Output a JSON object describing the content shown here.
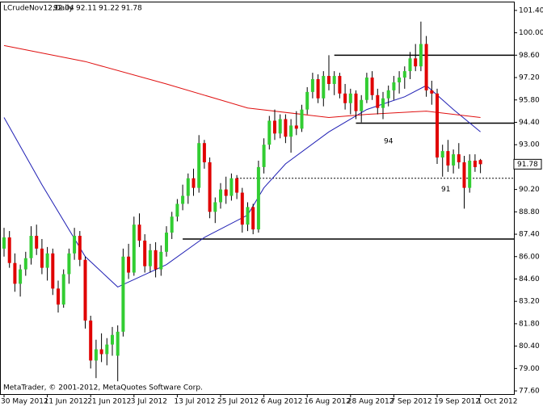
{
  "chart_data": {
    "type": "candlestick",
    "title": "LCrudeNov12,Daily",
    "footer": "MetaTrader, © 2001-2012, MetaQuotes Software Corp.",
    "categories": [
      "30 May 2012",
      null,
      null,
      null,
      null,
      null,
      null,
      null,
      "11 Jun 2012",
      null,
      null,
      null,
      null,
      null,
      null,
      null,
      "21 Jun 2012",
      null,
      null,
      null,
      null,
      null,
      null,
      null,
      "3 Jul 2012",
      null,
      null,
      null,
      null,
      null,
      null,
      null,
      "13 Jul 2012",
      null,
      null,
      null,
      null,
      null,
      null,
      null,
      "25 Jul 2012",
      null,
      null,
      null,
      null,
      null,
      null,
      null,
      "6 Aug 2012",
      null,
      null,
      null,
      null,
      null,
      null,
      null,
      "16 Aug 2012",
      null,
      null,
      null,
      null,
      null,
      null,
      null,
      "28 Aug 2012",
      null,
      null,
      null,
      null,
      null,
      null,
      null,
      "7 Sep 2012",
      null,
      null,
      null,
      null,
      null,
      null,
      null,
      "19 Sep 2012",
      null,
      null,
      null,
      null,
      null,
      null,
      null,
      "1 Oct 2012"
    ],
    "open": [
      86.5,
      87.2,
      85.6,
      84.3,
      85.2,
      85.9,
      87.3,
      86.5,
      85.3,
      86.2,
      84.0,
      83.0,
      84.9,
      86.2,
      87.3,
      85.8,
      82.0,
      79.5,
      80.2,
      79.9,
      80.5,
      79.8,
      81.3,
      86.0,
      85.0,
      88.0,
      87.0,
      85.4,
      86.4,
      85.2,
      86.3,
      87.5,
      88.5,
      89.3,
      89.8,
      90.9,
      90.3,
      93.1,
      91.9,
      88.8,
      89.4,
      90.2,
      89.8,
      90.9,
      90.0,
      88.0,
      89.1,
      87.7,
      91.6,
      93.0,
      94.5,
      93.7,
      94.6,
      93.5,
      94.2,
      94.0,
      95.2,
      96.3,
      97.1,
      95.9,
      97.3,
      96.8,
      97.3,
      96.2,
      95.6,
      96.2,
      95.1,
      95.8,
      97.2,
      96.1,
      95.3,
      95.9,
      96.4,
      96.9,
      97.2,
      97.6,
      98.4,
      97.9,
      99.3,
      96.4,
      96.2,
      92.2,
      92.6,
      91.7,
      92.4,
      91.9,
      90.3,
      92.0,
      92.04
    ],
    "high": [
      87.8,
      87.6,
      86.2,
      85.5,
      86.3,
      87.9,
      88.0,
      87.1,
      86.6,
      86.5,
      84.5,
      85.2,
      86.5,
      87.8,
      87.6,
      86.0,
      82.3,
      80.8,
      81.2,
      80.9,
      81.6,
      81.7,
      86.5,
      86.8,
      88.5,
      88.7,
      87.4,
      86.8,
      86.9,
      86.7,
      87.9,
      88.8,
      89.6,
      90.5,
      91.2,
      91.5,
      93.6,
      93.3,
      92.2,
      89.7,
      90.6,
      91.0,
      91.2,
      91.1,
      90.3,
      89.4,
      89.3,
      92.0,
      93.4,
      94.8,
      95.2,
      94.9,
      94.9,
      94.6,
      95.1,
      95.5,
      96.6,
      97.5,
      97.4,
      97.6,
      98.6,
      97.6,
      97.5,
      96.8,
      96.5,
      96.4,
      96.1,
      97.5,
      97.6,
      96.5,
      96.3,
      96.7,
      97.3,
      97.6,
      97.9,
      98.8,
      99.3,
      100.7,
      99.8,
      97.0,
      96.5,
      93.0,
      93.3,
      92.7,
      93.1,
      92.3,
      92.4,
      92.4,
      92.11
    ],
    "low": [
      86.0,
      85.3,
      83.8,
      83.5,
      84.8,
      85.5,
      86.1,
      84.9,
      84.5,
      83.6,
      82.5,
      82.8,
      84.3,
      85.8,
      85.4,
      81.5,
      79.0,
      78.4,
      79.4,
      79.2,
      79.8,
      78.2,
      81.0,
      84.6,
      84.8,
      86.6,
      85.0,
      85.0,
      84.7,
      84.8,
      86.0,
      87.1,
      88.2,
      88.9,
      89.3,
      89.8,
      90.0,
      91.5,
      88.4,
      88.1,
      89.0,
      89.3,
      89.5,
      89.6,
      87.5,
      87.6,
      87.4,
      87.5,
      91.2,
      92.7,
      93.3,
      93.4,
      93.1,
      92.5,
      93.6,
      93.8,
      94.9,
      95.9,
      95.6,
      95.4,
      96.4,
      96.1,
      95.9,
      95.2,
      94.9,
      94.6,
      94.4,
      95.6,
      95.8,
      94.9,
      94.6,
      95.4,
      95.8,
      96.2,
      96.5,
      97.1,
      97.6,
      97.6,
      96.0,
      95.5,
      91.8,
      91.0,
      91.3,
      91.2,
      91.5,
      89.0,
      90.0,
      91.3,
      91.22
    ],
    "close": [
      87.2,
      85.6,
      84.3,
      85.2,
      85.9,
      87.3,
      86.5,
      85.3,
      86.2,
      84.0,
      83.0,
      84.9,
      86.2,
      87.3,
      85.8,
      82.0,
      79.5,
      80.2,
      79.9,
      80.5,
      81.1,
      81.3,
      86.0,
      85.0,
      88.0,
      87.0,
      85.4,
      86.4,
      85.2,
      86.3,
      87.5,
      88.5,
      89.3,
      89.8,
      90.9,
      90.3,
      93.1,
      91.9,
      88.8,
      89.4,
      90.2,
      89.8,
      90.9,
      90.0,
      88.0,
      89.1,
      87.7,
      91.6,
      93.0,
      94.5,
      93.7,
      94.6,
      93.5,
      94.2,
      94.0,
      95.2,
      96.3,
      97.1,
      95.9,
      97.3,
      96.8,
      97.3,
      96.2,
      95.6,
      96.2,
      95.1,
      95.8,
      97.2,
      96.1,
      95.3,
      95.9,
      96.4,
      96.9,
      97.2,
      97.6,
      98.4,
      97.9,
      99.3,
      96.4,
      96.2,
      92.2,
      92.6,
      91.7,
      92.4,
      91.9,
      90.3,
      92.0,
      91.6,
      91.78
    ],
    "up_color": "#32cd32",
    "down_color": "#e00000",
    "wick_color": "#000000",
    "moving_averages": [
      {
        "color": "#1f1fb4",
        "x": [
          0,
          7,
          15,
          21,
          30,
          37,
          45,
          48,
          52,
          60,
          67,
          74,
          78,
          83,
          88
        ],
        "values": [
          94.7,
          90.5,
          86.0,
          84.1,
          85.5,
          87.2,
          88.6,
          90.3,
          91.8,
          93.8,
          95.2,
          96.0,
          96.7,
          95.2,
          93.8
        ]
      },
      {
        "color": "#e01010",
        "x": [
          0,
          15,
          30,
          45,
          60,
          67,
          78,
          88
        ],
        "values": [
          99.2,
          98.2,
          96.8,
          95.3,
          94.7,
          94.9,
          95.1,
          94.7
        ]
      }
    ],
    "levels": [
      98.6,
      94.35,
      87.1
    ],
    "dotted_level": 90.9,
    "annotations": [
      "94",
      "91"
    ],
    "ylim": [
      77.4,
      101.9
    ],
    "yticks": [
      {
        "value": 101.4,
        "label": "101.40"
      },
      {
        "value": 100.0,
        "label": "100.00"
      },
      {
        "value": 98.6,
        "label": "98.60"
      },
      {
        "value": 97.2,
        "label": "97.20"
      },
      {
        "value": 95.8,
        "label": "95.80"
      },
      {
        "value": 94.4,
        "label": "94.40"
      },
      {
        "value": 93.0,
        "label": "93.00"
      },
      {
        "value": 90.2,
        "label": "90.20"
      },
      {
        "value": 88.8,
        "label": "88.80"
      },
      {
        "value": 87.4,
        "label": "87.40"
      },
      {
        "value": 86.0,
        "label": "86.00"
      },
      {
        "value": 84.6,
        "label": "84.60"
      },
      {
        "value": 83.2,
        "label": "83.20"
      },
      {
        "value": 81.8,
        "label": "81.80"
      },
      {
        "value": 80.4,
        "label": "80.40"
      },
      {
        "value": 79.0,
        "label": "79.00"
      },
      {
        "value": 77.6,
        "label": "77.60"
      }
    ]
  }
}
